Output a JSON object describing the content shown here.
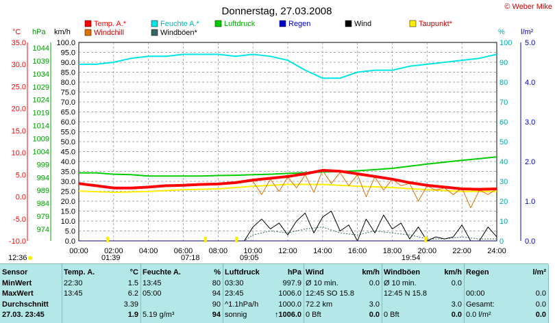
{
  "title": "Donnerstag, 27.03.2008",
  "copyright": "© Weber Mike",
  "units_left": [
    "°C",
    "hPa",
    "km/h"
  ],
  "units_right": [
    "%",
    "l/m²"
  ],
  "legend": [
    {
      "label": "Temp. A.*",
      "color": "#ff0000"
    },
    {
      "label": "Feuchte A.*",
      "color": "#00e5e5"
    },
    {
      "label": "Luftdruck",
      "color": "#00cc00"
    },
    {
      "label": "Regen",
      "color": "#0000cc"
    },
    {
      "label": "Wind",
      "color": "#000000"
    },
    {
      "label": "Taupunkt*",
      "color": "#ffee00"
    },
    {
      "label": "Windchill",
      "color": "#e07000"
    },
    {
      "label": "Windböen*",
      "color": "#336666"
    }
  ],
  "axis_labels": {
    "temp": [
      "35.0",
      "30.0",
      "25.0",
      "20.0",
      "15.0",
      "10.0",
      "5.0",
      "0.0",
      "-5.0",
      "-10.0"
    ],
    "pressure": [
      "1044",
      "1039",
      "1034",
      "1029",
      "1024",
      "1019",
      "1014",
      "1009",
      "1004",
      "999",
      "994",
      "989",
      "984",
      "979",
      "974"
    ],
    "wind": [
      "100.0",
      "95.0",
      "90.0",
      "85.0",
      "80.0",
      "75.0",
      "70.0",
      "65.0",
      "60.0",
      "55.0",
      "50.0",
      "45.0",
      "40.0",
      "35.0",
      "30.0",
      "25.0",
      "20.0",
      "15.0",
      "10.0",
      "5.0",
      "0.0"
    ],
    "humidity": [
      "100",
      "90",
      "80",
      "70",
      "60",
      "50",
      "40",
      "30",
      "20",
      "10",
      "0"
    ],
    "rain": [
      "5.0",
      "4.0",
      "3.0",
      "2.0",
      "1.0",
      "0.0"
    ],
    "time": [
      "00:00",
      "02:00",
      "04:00",
      "06:00",
      "08:00",
      "10:00",
      "12:00",
      "14:00",
      "16:00",
      "18:00",
      "20:00",
      "22:00",
      "24:00"
    ]
  },
  "sun_markers": [
    {
      "label": "12:36"
    },
    {
      "label": "01:39"
    },
    {
      "label": "07:18"
    },
    {
      "label": "09:05"
    },
    {
      "label": "19:54"
    }
  ],
  "chart_data": {
    "type": "line",
    "x_unit": "hour",
    "xlim": [
      0,
      24
    ],
    "series": [
      {
        "name": "Temp. A.*",
        "axis": "°C",
        "color": "#ff0000",
        "x": [
          0,
          1,
          2,
          3,
          4,
          5,
          6,
          7,
          8,
          9,
          10,
          11,
          12,
          13,
          14,
          15,
          16,
          17,
          18,
          19,
          20,
          21,
          22,
          23,
          24
        ],
        "y": [
          3.0,
          2.5,
          2.0,
          2.0,
          2.2,
          2.5,
          2.6,
          2.8,
          2.9,
          3.2,
          3.8,
          4.2,
          4.6,
          5.2,
          6.0,
          5.8,
          5.2,
          4.6,
          4.0,
          3.2,
          2.6,
          2.2,
          1.8,
          1.7,
          1.8
        ]
      },
      {
        "name": "Feuchte A.*",
        "axis": "%",
        "color": "#00e5e5",
        "x": [
          0,
          1,
          2,
          3,
          4,
          5,
          6,
          7,
          8,
          9,
          10,
          11,
          12,
          13,
          14,
          15,
          16,
          17,
          18,
          19,
          20,
          21,
          22,
          23,
          24
        ],
        "y": [
          89,
          89,
          90,
          92,
          93,
          93,
          94,
          94,
          94,
          93,
          94,
          93,
          91,
          86,
          82,
          82,
          85,
          86,
          86,
          88,
          89,
          90,
          91,
          92,
          94
        ]
      },
      {
        "name": "Luftdruck",
        "axis": "hPa",
        "color": "#00cc00",
        "x": [
          0,
          1,
          2,
          3,
          4,
          5,
          6,
          7,
          8,
          9,
          10,
          11,
          12,
          13,
          14,
          15,
          16,
          17,
          18,
          19,
          20,
          21,
          22,
          23,
          24
        ],
        "y": [
          999.5,
          999.5,
          999.0,
          998.8,
          998.3,
          998.3,
          998.3,
          998.3,
          998.5,
          998.6,
          998.8,
          999.0,
          999.3,
          999.6,
          999.8,
          1000.0,
          1000.3,
          1000.7,
          1001.2,
          1002.0,
          1002.8,
          1003.5,
          1004.2,
          1004.8,
          1005.5
        ]
      },
      {
        "name": "Taupunkt*",
        "axis": "°C",
        "color": "#ffee00",
        "x": [
          0,
          2,
          4,
          6,
          8,
          10,
          12,
          14,
          16,
          18,
          20,
          22,
          24
        ],
        "y": [
          1.3,
          1.0,
          1.2,
          1.6,
          1.8,
          2.4,
          2.8,
          2.8,
          2.4,
          2.1,
          1.6,
          1.2,
          1.2
        ]
      },
      {
        "name": "Windchill",
        "axis": "°C",
        "color": "#e07000",
        "x": [
          0,
          1,
          2,
          3,
          4,
          5,
          6,
          7,
          8,
          9,
          10,
          10.5,
          11,
          11.5,
          12,
          12.5,
          13,
          13.5,
          14,
          14.5,
          15,
          15.5,
          16,
          16.5,
          17,
          17.5,
          18,
          18.5,
          19,
          19.5,
          20,
          20.5,
          21,
          21.5,
          22,
          22.5,
          23,
          23.5,
          24
        ],
        "y": [
          3.0,
          2.5,
          2.0,
          2.0,
          2.2,
          2.5,
          2.6,
          2.8,
          2.9,
          3.2,
          3.5,
          0.5,
          4.0,
          1.2,
          4.5,
          2.0,
          5.0,
          1.0,
          6.0,
          3.0,
          5.5,
          2.5,
          5.0,
          0.0,
          4.5,
          1.5,
          4.0,
          2.5,
          3.0,
          -1.0,
          2.5,
          1.5,
          2.0,
          0.5,
          2.0,
          -2.5,
          1.5,
          0.5,
          1.8
        ]
      },
      {
        "name": "Wind",
        "axis": "km/h",
        "color": "#000000",
        "x": [
          0,
          9.5,
          10,
          10.5,
          11,
          11.5,
          12,
          12.5,
          13,
          13.5,
          14,
          14.5,
          15,
          15.5,
          16,
          16.5,
          17,
          17.5,
          18,
          18.5,
          19,
          19.5,
          20,
          20.5,
          21,
          21.5,
          22,
          22.5,
          23,
          23.5,
          24
        ],
        "y": [
          0,
          0,
          7,
          11,
          6,
          9,
          3,
          10,
          14,
          4,
          12,
          15,
          5,
          8,
          0,
          11,
          4,
          13,
          6,
          9,
          1,
          7,
          0,
          2,
          1,
          2,
          8,
          0,
          0,
          7,
          2
        ]
      },
      {
        "name": "Windböen*",
        "axis": "km/h",
        "color": "#336666",
        "x": [
          0,
          9.5,
          10,
          11,
          12,
          13,
          14,
          15,
          16,
          17,
          18,
          19,
          20,
          21,
          22,
          23,
          24
        ],
        "y": [
          0,
          0,
          3,
          5,
          4,
          6,
          7,
          4,
          3,
          5,
          4,
          3,
          1,
          1,
          2,
          1,
          1
        ]
      },
      {
        "name": "Regen",
        "axis": "l/m²",
        "color": "#0000cc",
        "x": [
          0,
          24
        ],
        "y": [
          0,
          0
        ]
      }
    ]
  },
  "table": [
    {
      "rows": [
        [
          "Sensor"
        ],
        [
          "MinWert"
        ],
        [
          "MaxWert"
        ],
        [
          "Durchschnitt"
        ],
        [
          "27.03. 23:45"
        ]
      ]
    },
    {
      "header": [
        "Temp. A.",
        "°C"
      ],
      "rows": [
        [
          "22:30",
          "1.5"
        ],
        [
          "13:45",
          "6.2"
        ],
        [
          "",
          "3.39"
        ],
        [
          "",
          "1.9"
        ]
      ]
    },
    {
      "header": [
        "Feuchte A.",
        "%"
      ],
      "rows": [
        [
          "13:45",
          "80"
        ],
        [
          "05:00",
          "94"
        ],
        [
          "",
          "90"
        ],
        [
          "5.19 g/m³",
          "94"
        ]
      ]
    },
    {
      "header": [
        "Luftdruck",
        "hPa"
      ],
      "rows": [
        [
          "03:30",
          "997.9"
        ],
        [
          "23:45",
          "1006.0"
        ],
        [
          "^1.1hPa/h",
          "1000.0"
        ],
        [
          "sonnig",
          "↑1006.0"
        ]
      ]
    },
    {
      "header": [
        "Wind",
        "km/h"
      ],
      "rows": [
        [
          "Ø 10 min.",
          "0.0"
        ],
        [
          "12:45   SO 15.8",
          ""
        ],
        [
          "72.2 km",
          "3.0"
        ],
        [
          "0 Bft",
          "0.0"
        ]
      ]
    },
    {
      "header": [
        "Windböen",
        "km/h"
      ],
      "rows": [
        [
          "Ø 10 min.",
          "0.0"
        ],
        [
          "12:45   N 15.8",
          ""
        ],
        [
          "",
          "3.0"
        ],
        [
          "0 Bft",
          "0.0"
        ]
      ]
    },
    {
      "header": [
        "Regen",
        "l/m²"
      ],
      "rows": [
        [
          "",
          ""
        ],
        [
          "00:00",
          "0.0"
        ],
        [
          "Gesamt:",
          "0.0"
        ],
        [
          "0.0 l/m²",
          "0.0"
        ]
      ]
    }
  ]
}
